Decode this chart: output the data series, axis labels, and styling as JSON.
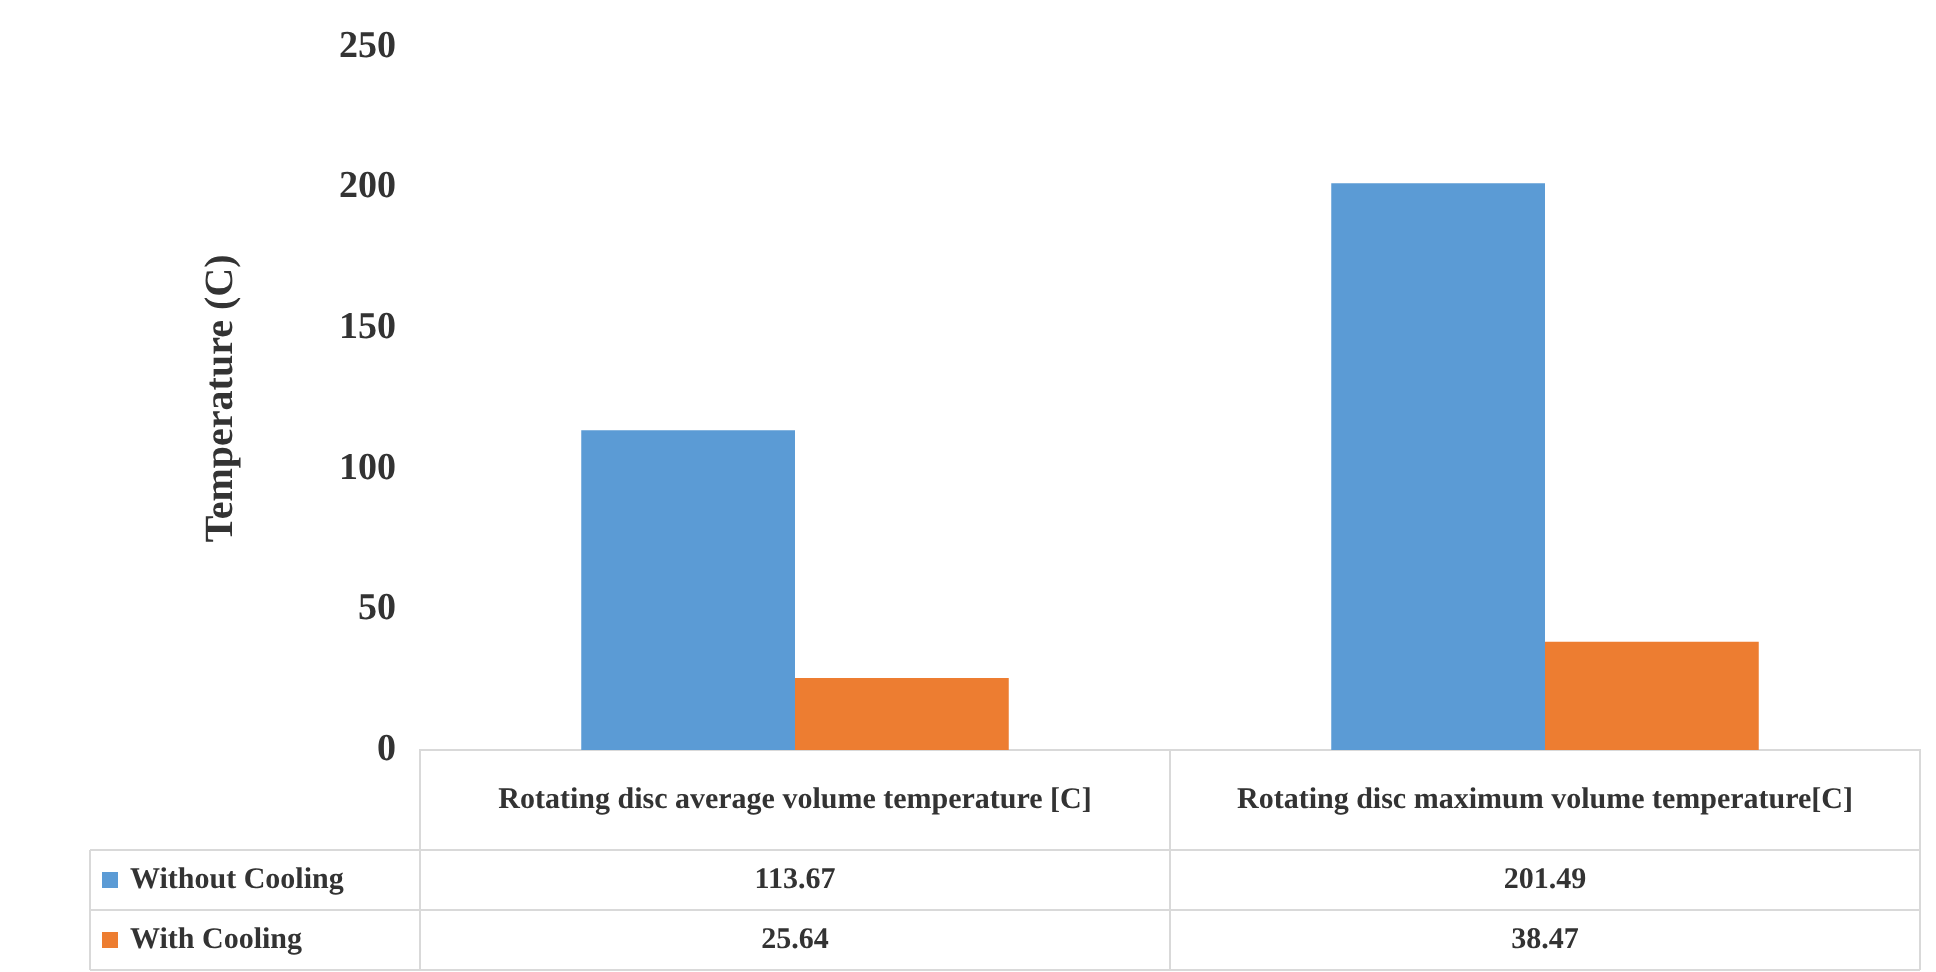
{
  "chart_data": {
    "type": "bar",
    "ylabel": "Temperature (C)",
    "categories": [
      "Rotating disc average volume temperature [C]",
      "Rotating disc maximum volume temperature[C]"
    ],
    "series": [
      {
        "name": "Without Cooling",
        "color": "#5b9bd5",
        "values": [
          113.67,
          201.49
        ]
      },
      {
        "name": "With Cooling",
        "color": "#ed7d31",
        "values": [
          25.64,
          38.47
        ]
      }
    ],
    "ylim": [
      0,
      250
    ],
    "yticks": [
      0,
      50,
      100,
      150,
      200,
      250
    ],
    "grid": false,
    "legend": "bottom",
    "data_labels": true
  }
}
